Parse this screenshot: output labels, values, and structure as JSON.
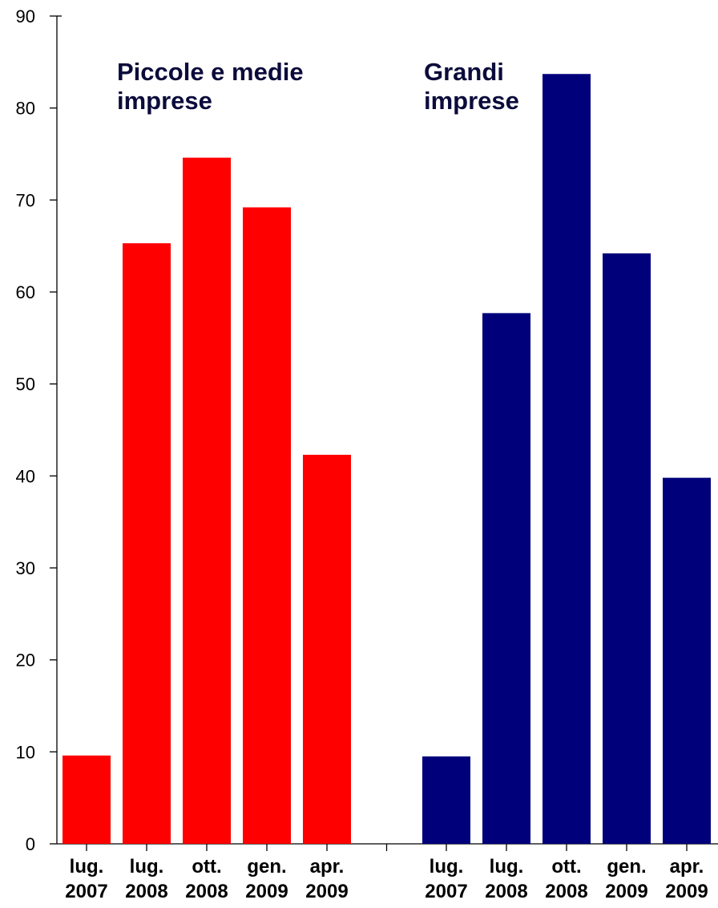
{
  "chart_data": {
    "type": "bar",
    "ylim": [
      0,
      90
    ],
    "yticks": [
      0,
      10,
      20,
      30,
      40,
      50,
      60,
      70,
      80,
      90
    ],
    "grid": false,
    "categories": [
      [
        "lug.",
        "2007"
      ],
      [
        "lug.",
        "2008"
      ],
      [
        "ott.",
        "2008"
      ],
      [
        "gen.",
        "2009"
      ],
      [
        "apr.",
        "2009"
      ]
    ],
    "groups": [
      {
        "label": [
          "Piccole e medie",
          "imprese"
        ],
        "color": "#ff0000",
        "values": [
          9.6,
          65.3,
          74.6,
          69.2,
          42.3
        ]
      },
      {
        "label": [
          "Grandi",
          "imprese"
        ],
        "color": "#00007b",
        "values": [
          9.5,
          57.7,
          83.7,
          64.2,
          39.8
        ]
      }
    ]
  }
}
